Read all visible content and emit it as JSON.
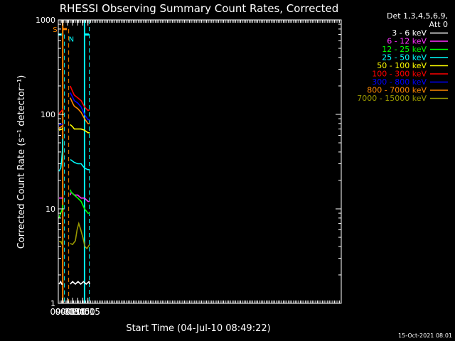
{
  "chart_data": {
    "type": "line",
    "title": "RHESSI Observing Summary Count Rates, Corrected",
    "xlabel": "Start Time (04-Jul-10 08:49:22)",
    "ylabel": "Corrected Count Rate (s⁻¹ detector⁻¹)",
    "yscale": "log",
    "ylim": [
      1,
      1000
    ],
    "x_unit": "minutes of 04-Jul-10",
    "xlim": [
      528,
      1358
    ],
    "yticks": [
      {
        "value": 1,
        "label": "1"
      },
      {
        "value": 10,
        "label": "10"
      },
      {
        "value": 100,
        "label": "100"
      },
      {
        "value": 1000,
        "label": "1000"
      }
    ],
    "xticks": [
      {
        "value": 540,
        "label": "09:00"
      },
      {
        "value": 555,
        "label": "09:15"
      },
      {
        "value": 570,
        "label": "09:30"
      },
      {
        "value": 585,
        "label": "09:45"
      },
      {
        "value": 600,
        "label": "10:00"
      },
      {
        "value": 615,
        "label": "10:15"
      }
    ],
    "legend_position": "top-right",
    "legend_header": [
      "Det 1,3,4,5,6,9,",
      "Att 0"
    ],
    "series": [
      {
        "name": "3 - 6 keV",
        "color": "#ffffff",
        "segments": [
          {
            "x": [
              530,
              535,
              538,
              541
            ],
            "y": [
              1.6,
              1.7,
              1.6,
              1.6
            ]
          },
          {
            "x": [
              563,
              570,
              578,
              586,
              594,
              602,
              610,
              618,
              620
            ],
            "y": [
              1.6,
              1.7,
              1.6,
              1.7,
              1.6,
              1.7,
              1.6,
              1.7,
              1.6
            ]
          }
        ]
      },
      {
        "name": "6 - 12 keV",
        "color": "#ff33ff",
        "segments": [
          {
            "x": [
              530,
              535,
              540,
              541
            ],
            "y": [
              13,
              13,
              13,
              13
            ]
          },
          {
            "x": [
              563,
              566,
              575,
              585,
              595,
              605,
              615,
              620
            ],
            "y": [
              14,
              15,
              14,
              14,
              13,
              13,
              12,
              12
            ]
          }
        ]
      },
      {
        "name": "12 - 25 keV",
        "color": "#00ff00",
        "segments": [
          {
            "x": [
              530,
              535,
              540,
              541
            ],
            "y": [
              8,
              9,
              10,
              11
            ]
          },
          {
            "x": [
              563,
              566,
              575,
              585,
              595,
              605,
              615,
              620
            ],
            "y": [
              16,
              15,
              14,
              13,
              12,
              10,
              9,
              9
            ]
          }
        ]
      },
      {
        "name": "25 - 50 keV",
        "color": "#00ffff",
        "segments": [
          {
            "x": [
              530,
              535,
              538,
              540,
              541
            ],
            "y": [
              25,
              27,
              33,
              42,
              55
            ]
          },
          {
            "x": [
              563,
              565,
              575,
              585,
              595,
              605,
              615,
              620
            ],
            "y": [
              33,
              33,
              31,
              30,
              30,
              27,
              26,
              26
            ]
          }
        ]
      },
      {
        "name": "50 - 100 keV",
        "color": "#ffff00",
        "segments": [
          {
            "x": [
              530,
              535,
              540,
              541
            ],
            "y": [
              68,
              69,
              70,
              72
            ]
          },
          {
            "x": [
              563,
              570,
              575,
              585,
              595,
              605,
              615,
              620
            ],
            "y": [
              78,
              74,
              70,
              70,
              70,
              68,
              64,
              64
            ]
          }
        ]
      },
      {
        "name": "100 - 300 keV",
        "color": "#ff0000",
        "segments": [
          {
            "x": [
              530,
              535,
              540,
              541
            ],
            "y": [
              102,
              106,
              112,
              115
            ]
          },
          {
            "x": [
              563,
              570,
              575,
              585,
              595,
              605,
              615,
              620
            ],
            "y": [
              200,
              175,
              160,
              150,
              140,
              120,
              110,
              112
            ]
          }
        ]
      },
      {
        "name": "300 - 800 keV",
        "color": "#0000ff",
        "segments": [
          {
            "x": [
              530,
              535,
              540,
              541
            ],
            "y": [
              78,
              78,
              79,
              80
            ]
          },
          {
            "x": [
              563,
              570,
              575,
              585,
              595,
              605,
              615,
              620
            ],
            "y": [
              170,
              152,
              140,
              132,
              120,
              100,
              88,
              88
            ]
          }
        ]
      },
      {
        "name": "800 - 7000 keV",
        "color": "#ff8800",
        "segments": [
          {
            "x": [
              530,
              535,
              540,
              541
            ],
            "y": [
              72,
              73,
              75,
              78
            ]
          },
          {
            "x": [
              563,
              570,
              575,
              585,
              595,
              605,
              615,
              620
            ],
            "y": [
              150,
              132,
              122,
              115,
              105,
              90,
              80,
              80
            ]
          }
        ]
      },
      {
        "name": "7000 - 15000 keV",
        "color": "#999900",
        "segments": [
          {
            "x": [
              530,
              535,
              538,
              541
            ],
            "y": [
              4.5,
              4.5,
              4.3,
              4.8
            ]
          },
          {
            "x": [
              563,
              570,
              578,
              583,
              588,
              594,
              600,
              606,
              612,
              620
            ],
            "y": [
              4.3,
              4.2,
              4.6,
              6,
              7,
              6,
              5,
              4,
              3.8,
              4.2
            ]
          }
        ]
      }
    ],
    "annotations": {
      "saa_label": "S",
      "night_label": "N",
      "top_bars": [
        {
          "color": "#00ffff",
          "x": [
            528,
            538
          ],
          "y": 700
        },
        {
          "color": "#00ffff",
          "x": [
            605,
            618
          ],
          "y": 700
        },
        {
          "color": "#ff8800",
          "x": [
            541,
            553
          ],
          "y": 800
        }
      ],
      "vlines": [
        {
          "x": 541,
          "color": "#ff8800",
          "style": "solid",
          "y_top": 1000
        },
        {
          "x": 546,
          "color": "#00ffff",
          "style": "dashed",
          "y_top": 700
        },
        {
          "x": 558.5,
          "color": "#ff8800",
          "style": "dashed",
          "y_top": 800
        },
        {
          "x": 605,
          "color": "#00ffff",
          "style": "solid",
          "y_top": 1000
        },
        {
          "x": 619,
          "color": "#00ffff",
          "style": "dashed",
          "y_top": 1000
        }
      ]
    }
  },
  "footer": {
    "timestamp": "15-Oct-2021 08:01"
  }
}
